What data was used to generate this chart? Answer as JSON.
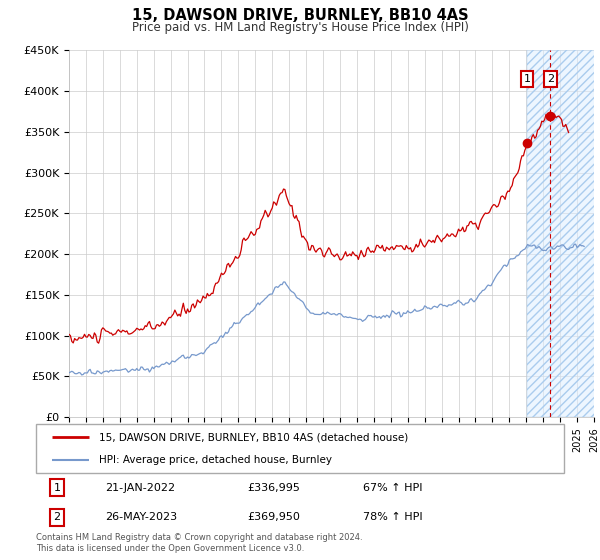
{
  "title": "15, DAWSON DRIVE, BURNLEY, BB10 4AS",
  "subtitle": "Price paid vs. HM Land Registry's House Price Index (HPI)",
  "legend_line1": "15, DAWSON DRIVE, BURNLEY, BB10 4AS (detached house)",
  "legend_line2": "HPI: Average price, detached house, Burnley",
  "annotation1": {
    "num": "1",
    "date": "21-JAN-2022",
    "price": "£336,995",
    "pct": "67% ↑ HPI"
  },
  "annotation2": {
    "num": "2",
    "date": "26-MAY-2023",
    "price": "£369,950",
    "pct": "78% ↑ HPI"
  },
  "footer": "Contains HM Land Registry data © Crown copyright and database right 2024.\nThis data is licensed under the Open Government Licence v3.0.",
  "ylim": [
    0,
    450000
  ],
  "yticks": [
    0,
    50000,
    100000,
    150000,
    200000,
    250000,
    300000,
    350000,
    400000,
    450000
  ],
  "ytick_labels": [
    "£0",
    "£50K",
    "£100K",
    "£150K",
    "£200K",
    "£250K",
    "£300K",
    "£350K",
    "£400K",
    "£450K"
  ],
  "red_color": "#cc0000",
  "blue_color": "#7799cc",
  "sale1_x": 2022.05,
  "sale1_y": 336995,
  "sale2_x": 2023.42,
  "sale2_y": 369950,
  "hatch_start": 2022.05,
  "xmin": 1995,
  "xmax": 2026,
  "xtick_start": 1995,
  "xtick_end": 2026
}
